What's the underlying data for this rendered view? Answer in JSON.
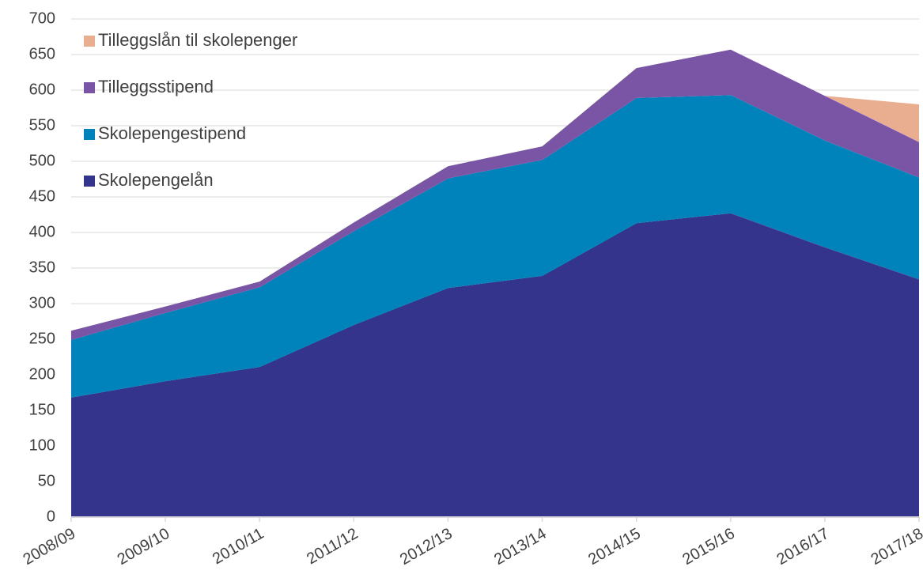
{
  "chart_data": {
    "type": "stacked_area",
    "categories": [
      "2008/09",
      "2009/10",
      "2010/11",
      "2011/12",
      "2012/13",
      "2013/14",
      "2014/15",
      "2015/16",
      "2016/17",
      "2017/18"
    ],
    "series": [
      {
        "name": "Skolepengelån",
        "color": "#35348c",
        "values": [
          168,
          191,
          211,
          270,
          322,
          339,
          413,
          427,
          379,
          334
        ]
      },
      {
        "name": "Skolepengestipend",
        "color": "#0082bb",
        "values": [
          81,
          96,
          112,
          132,
          154,
          163,
          176,
          166,
          150,
          143
        ]
      },
      {
        "name": "Tilleggsstipend",
        "color": "#7b55a5",
        "values": [
          13,
          9,
          8,
          12,
          17,
          19,
          42,
          64,
          63,
          50
        ]
      },
      {
        "name": "Tilleggslån til skolepenger",
        "color": "#e8ae8f",
        "values": [
          0,
          0,
          0,
          0,
          0,
          0,
          0,
          0,
          0,
          53
        ]
      }
    ],
    "ylim": [
      0,
      700
    ],
    "yticks": [
      0,
      50,
      100,
      150,
      200,
      250,
      300,
      350,
      400,
      450,
      500,
      550,
      600,
      650,
      700
    ],
    "grid": true,
    "legend": "top-left"
  }
}
